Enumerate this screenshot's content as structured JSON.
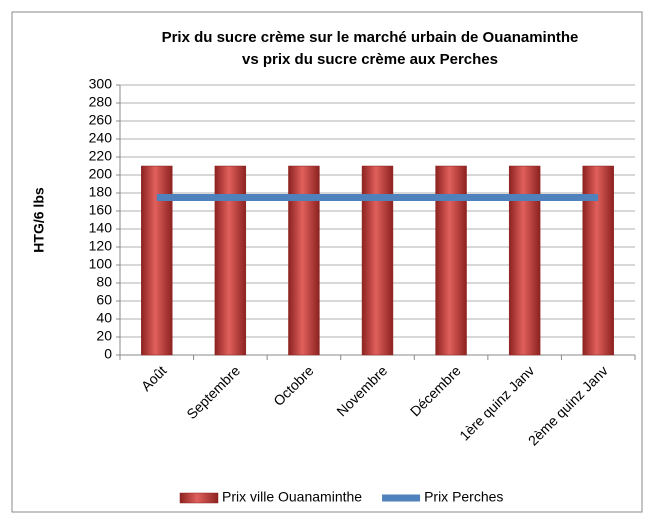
{
  "chart_data": {
    "type": "bar",
    "title": [
      "Prix du sucre crème sur le marché urbain de Ouanaminthe",
      "vs prix du sucre crème aux Perches"
    ],
    "y_label": "HTG/6 lbs",
    "categories": [
      "Août",
      "Septembre",
      "Octobre",
      "Novembre",
      "Décembre",
      "1ère quinz Janv",
      "2ème quinz Janv"
    ],
    "series": [
      {
        "name": "Prix ville Ouanaminthe",
        "type": "bar",
        "color": "#c0504d",
        "values": [
          210,
          210,
          210,
          210,
          210,
          210,
          210
        ]
      },
      {
        "name": "Prix Perches",
        "type": "line",
        "color": "#4f81bd",
        "values": [
          175,
          175,
          175,
          175,
          175,
          175,
          175
        ]
      }
    ],
    "ylim": [
      0,
      300
    ],
    "yticks": [
      0,
      20,
      40,
      60,
      80,
      100,
      120,
      140,
      160,
      180,
      200,
      220,
      240,
      260,
      280,
      300
    ],
    "grid": true,
    "legend": "bottom"
  }
}
